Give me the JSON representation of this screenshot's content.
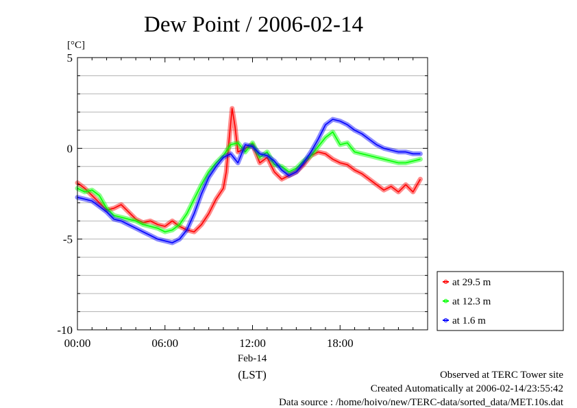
{
  "chart_data": {
    "type": "line",
    "title": "Dew Point / 2006-02-14",
    "ylabel": "[°C]",
    "ylim": [
      -10,
      5
    ],
    "yticks": [
      5,
      0,
      -5,
      -10
    ],
    "xlim": [
      0,
      24
    ],
    "xticks": [
      {
        "value": 0,
        "label": "00:00"
      },
      {
        "value": 6,
        "label": "06:00"
      },
      {
        "value": 12,
        "label": "12:00"
      },
      {
        "value": 18,
        "label": "18:00"
      }
    ],
    "xdate_label": "Feb-14",
    "xunit_label": "(LST)",
    "grid": true,
    "legend_position": "right",
    "series": [
      {
        "name": "at 29.5 m",
        "color": "#ff0000",
        "x": [
          0,
          0.5,
          1,
          1.5,
          2,
          2.5,
          3,
          3.5,
          4,
          4.5,
          5,
          5.5,
          6,
          6.5,
          7,
          7.5,
          8,
          8.5,
          9,
          9.5,
          10,
          10.2,
          10.4,
          10.6,
          10.8,
          11,
          11.5,
          12,
          12.5,
          13,
          13.5,
          14,
          14.5,
          15,
          15.5,
          16,
          16.5,
          17,
          17.5,
          18,
          18.5,
          19,
          19.5,
          20,
          20.5,
          21,
          21.5,
          22,
          22.5,
          23,
          23.5
        ],
        "y": [
          -1.9,
          -2.2,
          -2.6,
          -3.0,
          -3.4,
          -3.3,
          -3.1,
          -3.5,
          -3.9,
          -4.1,
          -4.0,
          -4.2,
          -4.3,
          -4.0,
          -4.3,
          -4.5,
          -4.6,
          -4.2,
          -3.6,
          -2.8,
          -2.2,
          -1.3,
          0.5,
          2.2,
          1.2,
          -0.2,
          0.0,
          0.2,
          -0.8,
          -0.5,
          -1.3,
          -1.7,
          -1.5,
          -1.3,
          -0.9,
          -0.4,
          -0.2,
          -0.3,
          -0.6,
          -0.8,
          -0.9,
          -1.2,
          -1.4,
          -1.7,
          -2.0,
          -2.3,
          -2.1,
          -2.4,
          -2.0,
          -2.4,
          -1.7
        ]
      },
      {
        "name": "at 12.3 m",
        "color": "#00ff00",
        "x": [
          0,
          0.5,
          1,
          1.5,
          2,
          2.5,
          3,
          3.5,
          4,
          4.5,
          5,
          5.5,
          6,
          6.5,
          7,
          7.5,
          8,
          8.5,
          9,
          9.5,
          10,
          10.5,
          11,
          11.5,
          12,
          12.5,
          13,
          13.5,
          14,
          14.5,
          15,
          15.5,
          16,
          16.5,
          17,
          17.5,
          18,
          18.5,
          19,
          19.5,
          20,
          20.5,
          21,
          21.5,
          22,
          22.5,
          23,
          23.5
        ],
        "y": [
          -2.2,
          -2.4,
          -2.3,
          -2.6,
          -3.3,
          -3.7,
          -3.8,
          -3.9,
          -4.0,
          -4.2,
          -4.3,
          -4.4,
          -4.6,
          -4.5,
          -4.2,
          -3.6,
          -2.8,
          -2.0,
          -1.3,
          -0.8,
          -0.4,
          0.2,
          0.3,
          -0.2,
          0.3,
          -0.5,
          -0.2,
          -0.9,
          -1.0,
          -1.3,
          -1.1,
          -0.7,
          -0.4,
          0.1,
          0.6,
          0.9,
          0.2,
          0.3,
          -0.2,
          -0.3,
          -0.4,
          -0.5,
          -0.6,
          -0.7,
          -0.8,
          -0.8,
          -0.7,
          -0.6
        ]
      },
      {
        "name": "at 1.6 m",
        "color": "#0000ff",
        "x": [
          0,
          0.5,
          1,
          1.5,
          2,
          2.5,
          3,
          3.5,
          4,
          4.5,
          5,
          5.5,
          6,
          6.5,
          7,
          7.5,
          8,
          8.5,
          9,
          9.5,
          10,
          10.5,
          11,
          11.5,
          12,
          12.5,
          13,
          13.5,
          14,
          14.5,
          15,
          15.5,
          16,
          16.5,
          17,
          17.5,
          18,
          18.5,
          19,
          19.5,
          20,
          20.5,
          21,
          21.5,
          22,
          22.5,
          23,
          23.5
        ],
        "y": [
          -2.7,
          -2.8,
          -2.9,
          -3.2,
          -3.5,
          -3.9,
          -4.0,
          -4.2,
          -4.4,
          -4.6,
          -4.8,
          -5.0,
          -5.1,
          -5.2,
          -5.0,
          -4.5,
          -3.6,
          -2.5,
          -1.6,
          -1.0,
          -0.5,
          -0.3,
          -0.8,
          0.2,
          0.1,
          -0.3,
          -0.4,
          -0.7,
          -1.2,
          -1.5,
          -1.3,
          -0.8,
          -0.2,
          0.5,
          1.3,
          1.6,
          1.5,
          1.3,
          1.0,
          0.8,
          0.5,
          0.2,
          0.0,
          -0.1,
          -0.2,
          -0.2,
          -0.3,
          -0.3
        ]
      }
    ]
  },
  "footer": {
    "site": "Observed at TERC Tower site",
    "created": "Created Automatically at 2006-02-14/23:55:42",
    "source": "Data source : /home/hoivo/new/TERC-data/sorted_data/MET.10s.dat"
  }
}
